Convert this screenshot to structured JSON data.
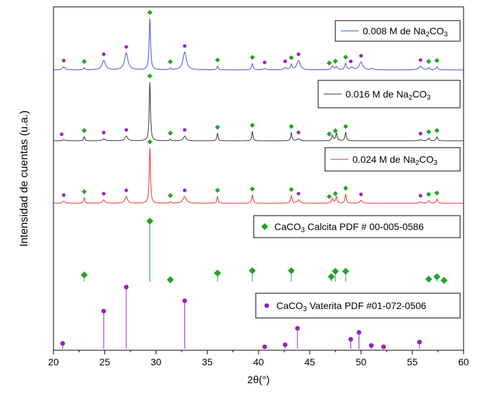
{
  "chart_data": {
    "type": "line",
    "title": "",
    "xlabel": "2θ(°)",
    "ylabel": "Intensidad de cuentas (u.a.)",
    "xlim": [
      20,
      60
    ],
    "xticks": [
      20,
      25,
      30,
      35,
      40,
      45,
      50,
      55,
      60
    ],
    "y_tick_labels": false,
    "grid": false,
    "colors": {
      "series_0008": "#3a4fd6",
      "series_0016": "#303030",
      "series_0024": "#e0302a",
      "calcite": "#22a326",
      "vaterite": "#9a1fc0"
    },
    "legends": [
      {
        "label": "0.008 M de Na2CO3",
        "series": "series_0008",
        "placement": "top-right"
      },
      {
        "label": "0.016 M de Na2CO3",
        "series": "series_0016",
        "placement": "right"
      },
      {
        "label": "0.024 M de Na2CO3",
        "series": "series_0024",
        "placement": "right"
      },
      {
        "label": "CaCO3 Calcita PDF # 00-005-0586",
        "series": "calcite",
        "placement": "right"
      },
      {
        "label": "CaCO3 Vaterita PDF #01-072-0506",
        "series": "vaterite",
        "placement": "bottom-right"
      }
    ],
    "series": [
      {
        "key": "series_0008",
        "offset": 100,
        "baseline": 1.5,
        "peaks": [
          {
            "x": 21.0,
            "h": 6,
            "w": 0.15
          },
          {
            "x": 23.0,
            "h": 4,
            "w": 0.08
          },
          {
            "x": 24.9,
            "h": 18,
            "w": 0.2
          },
          {
            "x": 27.1,
            "h": 32,
            "w": 0.2
          },
          {
            "x": 29.4,
            "h": 98,
            "w": 0.08
          },
          {
            "x": 31.4,
            "h": 3,
            "w": 0.08
          },
          {
            "x": 32.8,
            "h": 34,
            "w": 0.2
          },
          {
            "x": 36.0,
            "h": 7,
            "w": 0.08
          },
          {
            "x": 39.4,
            "h": 12,
            "w": 0.09
          },
          {
            "x": 40.6,
            "h": 2.5,
            "w": 0.15
          },
          {
            "x": 42.6,
            "h": 4,
            "w": 0.15
          },
          {
            "x": 43.2,
            "h": 10,
            "w": 0.09
          },
          {
            "x": 43.9,
            "h": 18,
            "w": 0.2
          },
          {
            "x": 47.2,
            "h": 7,
            "w": 0.12
          },
          {
            "x": 47.6,
            "h": 6,
            "w": 0.12
          },
          {
            "x": 48.5,
            "h": 12,
            "w": 0.1
          },
          {
            "x": 49.1,
            "h": 5,
            "w": 0.15
          },
          {
            "x": 50.0,
            "h": 15,
            "w": 0.2
          },
          {
            "x": 51.1,
            "h": 2.5,
            "w": 0.15
          },
          {
            "x": 55.8,
            "h": 7,
            "w": 0.2
          },
          {
            "x": 56.6,
            "h": 4,
            "w": 0.1
          },
          {
            "x": 57.4,
            "h": 6,
            "w": 0.1
          }
        ]
      },
      {
        "key": "series_0016",
        "offset": 0,
        "baseline": 1,
        "peaks": [
          {
            "x": 21.0,
            "h": 1.5,
            "w": 0.15
          },
          {
            "x": 23.0,
            "h": 6,
            "w": 0.07
          },
          {
            "x": 24.9,
            "h": 3,
            "w": 0.15
          },
          {
            "x": 27.1,
            "h": 7,
            "w": 0.15
          },
          {
            "x": 29.4,
            "h": 87,
            "w": 0.07
          },
          {
            "x": 31.4,
            "h": 2,
            "w": 0.08
          },
          {
            "x": 32.8,
            "h": 7,
            "w": 0.15
          },
          {
            "x": 36.0,
            "h": 11,
            "w": 0.07
          },
          {
            "x": 39.4,
            "h": 14,
            "w": 0.07
          },
          {
            "x": 43.2,
            "h": 12,
            "w": 0.07
          },
          {
            "x": 43.9,
            "h": 3,
            "w": 0.15
          },
          {
            "x": 47.2,
            "h": 8,
            "w": 0.09
          },
          {
            "x": 47.6,
            "h": 11,
            "w": 0.09
          },
          {
            "x": 48.5,
            "h": 12,
            "w": 0.08
          },
          {
            "x": 55.8,
            "h": 1.5,
            "w": 0.15
          },
          {
            "x": 56.6,
            "h": 4,
            "w": 0.09
          },
          {
            "x": 57.4,
            "h": 6,
            "w": 0.09
          }
        ]
      },
      {
        "key": "series_0024",
        "offset": -100,
        "baseline": 1,
        "peaks": [
          {
            "x": 21.0,
            "h": 3,
            "w": 0.15
          },
          {
            "x": 23.0,
            "h": 8,
            "w": 0.07
          },
          {
            "x": 24.9,
            "h": 5,
            "w": 0.15
          },
          {
            "x": 27.1,
            "h": 10,
            "w": 0.15
          },
          {
            "x": 29.4,
            "h": 82,
            "w": 0.07
          },
          {
            "x": 31.4,
            "h": 2,
            "w": 0.08
          },
          {
            "x": 32.8,
            "h": 10,
            "w": 0.2
          },
          {
            "x": 36.0,
            "h": 10,
            "w": 0.07
          },
          {
            "x": 39.4,
            "h": 12,
            "w": 0.08
          },
          {
            "x": 43.2,
            "h": 11,
            "w": 0.08
          },
          {
            "x": 43.9,
            "h": 5,
            "w": 0.15
          },
          {
            "x": 47.2,
            "h": 7,
            "w": 0.09
          },
          {
            "x": 47.6,
            "h": 10,
            "w": 0.09
          },
          {
            "x": 48.5,
            "h": 13,
            "w": 0.08
          },
          {
            "x": 50.0,
            "h": 4,
            "w": 0.15
          },
          {
            "x": 55.8,
            "h": 2,
            "w": 0.15
          },
          {
            "x": 56.6,
            "h": 4,
            "w": 0.09
          },
          {
            "x": 57.4,
            "h": 6,
            "w": 0.09
          }
        ]
      }
    ],
    "reference_calcite": [
      {
        "x": 23.0,
        "i": 11
      },
      {
        "x": 29.4,
        "i": 100
      },
      {
        "x": 31.4,
        "i": 3
      },
      {
        "x": 36.0,
        "i": 14
      },
      {
        "x": 39.4,
        "i": 18
      },
      {
        "x": 43.2,
        "i": 18
      },
      {
        "x": 47.1,
        "i": 8
      },
      {
        "x": 47.5,
        "i": 17
      },
      {
        "x": 48.5,
        "i": 17
      },
      {
        "x": 56.6,
        "i": 4
      },
      {
        "x": 57.4,
        "i": 8
      },
      {
        "x": 58.1,
        "i": 2
      }
    ],
    "reference_vaterite": [
      {
        "x": 20.9,
        "i": 8
      },
      {
        "x": 24.9,
        "i": 55
      },
      {
        "x": 27.1,
        "i": 90
      },
      {
        "x": 32.8,
        "i": 70
      },
      {
        "x": 40.6,
        "i": 3
      },
      {
        "x": 42.6,
        "i": 6
      },
      {
        "x": 43.8,
        "i": 30
      },
      {
        "x": 49.0,
        "i": 14
      },
      {
        "x": 49.8,
        "i": 24
      },
      {
        "x": 51.0,
        "i": 5
      },
      {
        "x": 52.2,
        "i": 3
      },
      {
        "x": 55.7,
        "i": 10
      }
    ],
    "series_markers": {
      "series_0008": [
        {
          "x": 21.0,
          "t": "v"
        },
        {
          "x": 23.0,
          "t": "c"
        },
        {
          "x": 24.9,
          "t": "v"
        },
        {
          "x": 27.1,
          "t": "v"
        },
        {
          "x": 29.4,
          "t": "c"
        },
        {
          "x": 31.4,
          "t": "c"
        },
        {
          "x": 32.8,
          "t": "v"
        },
        {
          "x": 36.0,
          "t": "c"
        },
        {
          "x": 39.4,
          "t": "c"
        },
        {
          "x": 40.6,
          "t": "v"
        },
        {
          "x": 42.6,
          "t": "v"
        },
        {
          "x": 43.2,
          "t": "c"
        },
        {
          "x": 43.9,
          "t": "v"
        },
        {
          "x": 46.9,
          "t": "c"
        },
        {
          "x": 47.5,
          "t": "c"
        },
        {
          "x": 48.5,
          "t": "c"
        },
        {
          "x": 49.0,
          "t": "v"
        },
        {
          "x": 50.0,
          "t": "v"
        },
        {
          "x": 55.8,
          "t": "v"
        },
        {
          "x": 56.6,
          "t": "c"
        },
        {
          "x": 57.4,
          "t": "c"
        }
      ],
      "series_0016": [
        {
          "x": 20.8,
          "t": "v"
        },
        {
          "x": 23.0,
          "t": "c"
        },
        {
          "x": 24.9,
          "t": "v"
        },
        {
          "x": 27.1,
          "t": "v"
        },
        {
          "x": 29.4,
          "t": "c"
        },
        {
          "x": 31.4,
          "t": "c"
        },
        {
          "x": 32.8,
          "t": "v"
        },
        {
          "x": 36.0,
          "t": "c"
        },
        {
          "x": 39.4,
          "t": "c"
        },
        {
          "x": 43.2,
          "t": "c"
        },
        {
          "x": 43.9,
          "t": "v"
        },
        {
          "x": 46.9,
          "t": "c"
        },
        {
          "x": 47.5,
          "t": "c"
        },
        {
          "x": 48.5,
          "t": "c"
        },
        {
          "x": 55.8,
          "t": "v"
        },
        {
          "x": 56.6,
          "t": "c"
        },
        {
          "x": 57.4,
          "t": "c"
        }
      ],
      "series_0024": [
        {
          "x": 21.0,
          "t": "v"
        },
        {
          "x": 23.0,
          "t": "c"
        },
        {
          "x": 24.9,
          "t": "v"
        },
        {
          "x": 27.1,
          "t": "v"
        },
        {
          "x": 29.4,
          "t": "c"
        },
        {
          "x": 31.4,
          "t": "c"
        },
        {
          "x": 32.8,
          "t": "v"
        },
        {
          "x": 36.0,
          "t": "c"
        },
        {
          "x": 39.4,
          "t": "c"
        },
        {
          "x": 43.2,
          "t": "c"
        },
        {
          "x": 43.9,
          "t": "v"
        },
        {
          "x": 46.9,
          "t": "c"
        },
        {
          "x": 47.5,
          "t": "c"
        },
        {
          "x": 48.5,
          "t": "c"
        },
        {
          "x": 50.0,
          "t": "v"
        },
        {
          "x": 55.8,
          "t": "v"
        },
        {
          "x": 56.6,
          "t": "c"
        },
        {
          "x": 57.4,
          "t": "c"
        }
      ]
    }
  }
}
